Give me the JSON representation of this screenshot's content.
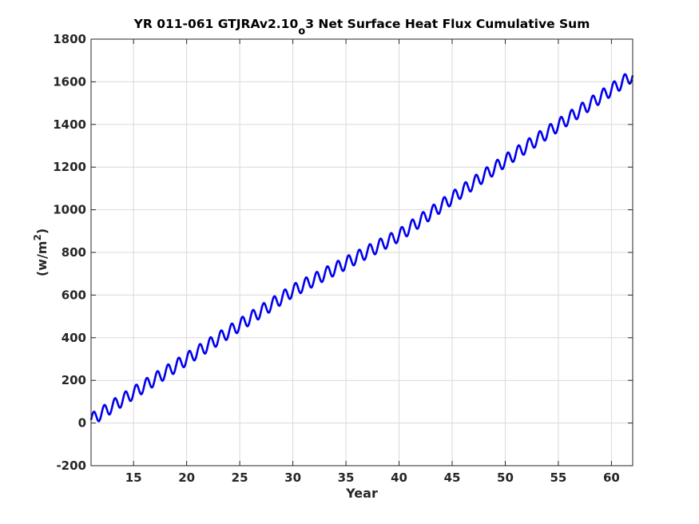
{
  "chart_data": {
    "type": "line",
    "title_parts": [
      "YR 011-061 GTJRAv2.10",
      "o",
      "3 Net Surface Heat Flux  Cumulative Sum"
    ],
    "xlabel": "Year",
    "ylabel_parts": [
      "(w/m",
      "2",
      ")"
    ],
    "xlim": [
      11,
      62
    ],
    "ylim": [
      -200,
      1800
    ],
    "xticks": [
      15,
      20,
      25,
      30,
      35,
      40,
      45,
      50,
      55,
      60
    ],
    "yticks": [
      -200,
      0,
      200,
      400,
      600,
      800,
      1000,
      1200,
      1400,
      1600,
      1800
    ],
    "grid": true,
    "series_color": "#0000ee",
    "series": [
      {
        "x_start": 11,
        "x_end": 62,
        "trend_points": [
          [
            11,
            15
          ],
          [
            20,
            300
          ],
          [
            30,
            620
          ],
          [
            40,
            880
          ],
          [
            50,
            1230
          ],
          [
            62,
            1630
          ]
        ],
        "seasonal_amplitude": 30,
        "seasonal_period_years": 1
      }
    ]
  }
}
